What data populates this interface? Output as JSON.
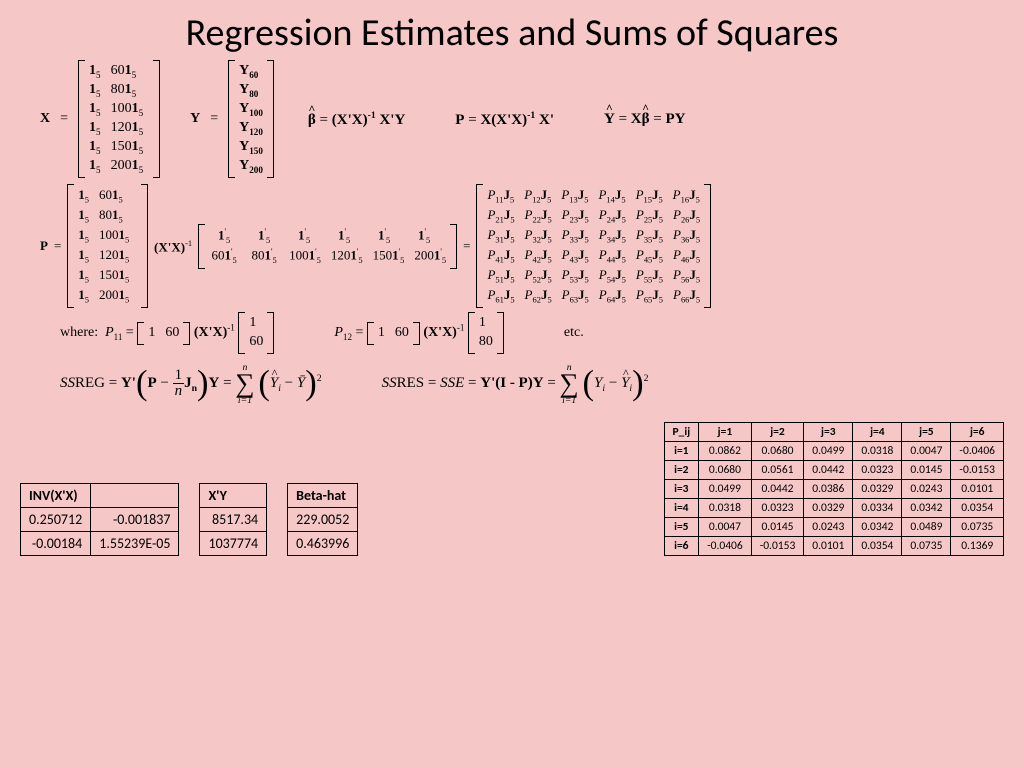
{
  "title": "Regression Estimates and Sums of Squares",
  "X_matrix_rows": [
    [
      "1",
      "60"
    ],
    [
      "1",
      "80"
    ],
    [
      "1",
      "100"
    ],
    [
      "1",
      "120"
    ],
    [
      "1",
      "150"
    ],
    [
      "1",
      "200"
    ]
  ],
  "Y_labels": [
    "Y₆₀",
    "Y₈₀",
    "Y₁₀₀",
    "Y₁₂₀",
    "Y₁₅₀",
    "Y₂₀₀"
  ],
  "eq_beta": "β̂ = (X'X)⁻¹ X'Y",
  "eq_P": "P = X(X'X)⁻¹ X'",
  "eq_Yhat": "Ŷ = Xβ̂ = PY",
  "transpose_row1": [
    "1",
    "1",
    "1",
    "1",
    "1",
    "1"
  ],
  "transpose_row2": [
    "60",
    "80",
    "100",
    "120",
    "150",
    "200"
  ],
  "P_grid_rows": 6,
  "P_grid_cols": 6,
  "where_line": "where:",
  "P11_eq": "P₁₁ = [1  60](X'X)⁻¹[1; 60]",
  "P12_eq": "P₁₂ = [1  60](X'X)⁻¹[1; 80]",
  "etc": "etc.",
  "ssreg": "SSREG = Y'(P − (1/n)Jₙ)Y = Σ(Ŷᵢ − Ȳ)²",
  "ssres": "SSRES = SSE = Y'(I - P)Y = Σ(Yᵢ − Ŷᵢ)²",
  "inv_table": {
    "header": "INV(X'X)",
    "rows": [
      [
        "0.250712",
        "-0.001837"
      ],
      [
        "-0.00184",
        "1.55239E-05"
      ]
    ]
  },
  "xy_table": {
    "header": "X'Y",
    "rows": [
      [
        "8517.34"
      ],
      [
        "1037774"
      ]
    ]
  },
  "beta_table": {
    "header": "Beta-hat",
    "rows": [
      [
        "229.0052"
      ],
      [
        "0.463996"
      ]
    ]
  },
  "pij_table": {
    "header": "P_ij",
    "col_headers": [
      "j=1",
      "j=2",
      "j=3",
      "j=4",
      "j=5",
      "j=6"
    ],
    "row_headers": [
      "i=1",
      "i=2",
      "i=3",
      "i=4",
      "i=5",
      "i=6"
    ],
    "rows": [
      [
        "0.0862",
        "0.0680",
        "0.0499",
        "0.0318",
        "0.0047",
        "-0.0406"
      ],
      [
        "0.0680",
        "0.0561",
        "0.0442",
        "0.0323",
        "0.0145",
        "-0.0153"
      ],
      [
        "0.0499",
        "0.0442",
        "0.0386",
        "0.0329",
        "0.0243",
        "0.0101"
      ],
      [
        "0.0318",
        "0.0323",
        "0.0329",
        "0.0334",
        "0.0342",
        "0.0354"
      ],
      [
        "0.0047",
        "0.0145",
        "0.0243",
        "0.0342",
        "0.0489",
        "0.0735"
      ],
      [
        "-0.0406",
        "-0.0153",
        "0.0101",
        "0.0354",
        "0.0735",
        "0.1369"
      ]
    ]
  },
  "colors": {
    "bg": "#f5c7c7",
    "text": "#000000",
    "border": "#000000"
  }
}
